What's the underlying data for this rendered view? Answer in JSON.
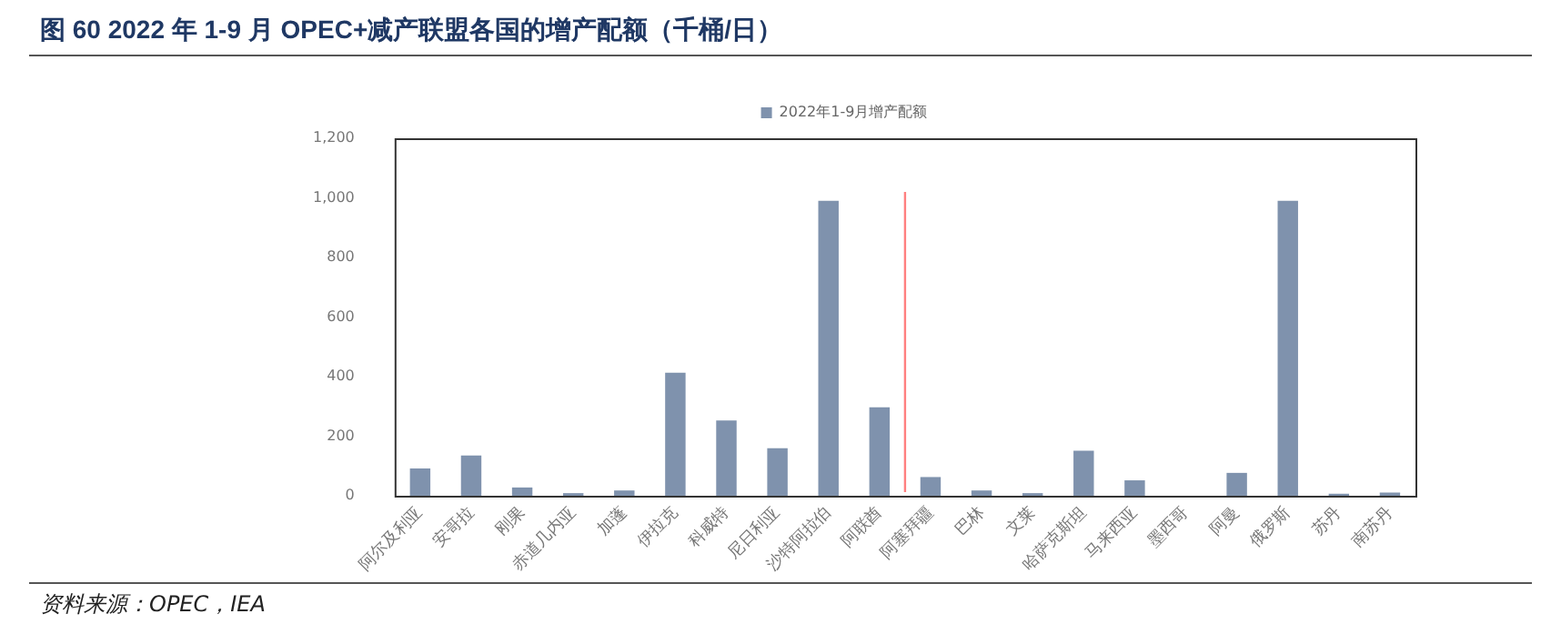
{
  "chart_data": {
    "type": "bar",
    "title": "图 60  2022 年 1-9 月 OPEC+减产联盟各国的增产配额（千桶/日）",
    "categories": [
      "阿尔及利亚",
      "安哥拉",
      "刚果",
      "赤道几内亚",
      "加蓬",
      "伊拉克",
      "科威特",
      "尼日利亚",
      "沙特阿拉伯",
      "阿联酋",
      "阿塞拜疆",
      "巴林",
      "文莱",
      "哈萨克斯坦",
      "马来西亚",
      "墨西哥",
      "阿曼",
      "俄罗斯",
      "苏丹",
      "南苏丹"
    ],
    "series": [
      {
        "name": "2022年1-9月增产配额",
        "color": "#7f92ad",
        "values": [
          92,
          135,
          28,
          9,
          18,
          413,
          253,
          160,
          990,
          297,
          63,
          18,
          9,
          151,
          52,
          0,
          77,
          990,
          7,
          11
        ]
      }
    ],
    "ylim": [
      0,
      1200
    ],
    "yticks": [
      {
        "value": 0,
        "label": "0"
      },
      {
        "value": 200,
        "label": "200"
      },
      {
        "value": 400,
        "label": "400"
      },
      {
        "value": 600,
        "label": "600"
      },
      {
        "value": 800,
        "label": "800"
      },
      {
        "value": 1000,
        "label": "1,000"
      },
      {
        "value": 1200,
        "label": "1,200"
      }
    ],
    "grid": false,
    "legend": "top",
    "ref_lines": [
      {
        "axis": "x",
        "value": "阿塞拜疆",
        "color": "#ff8080"
      }
    ],
    "annotations": [
      "资料来源：OPEC，IEA"
    ]
  }
}
